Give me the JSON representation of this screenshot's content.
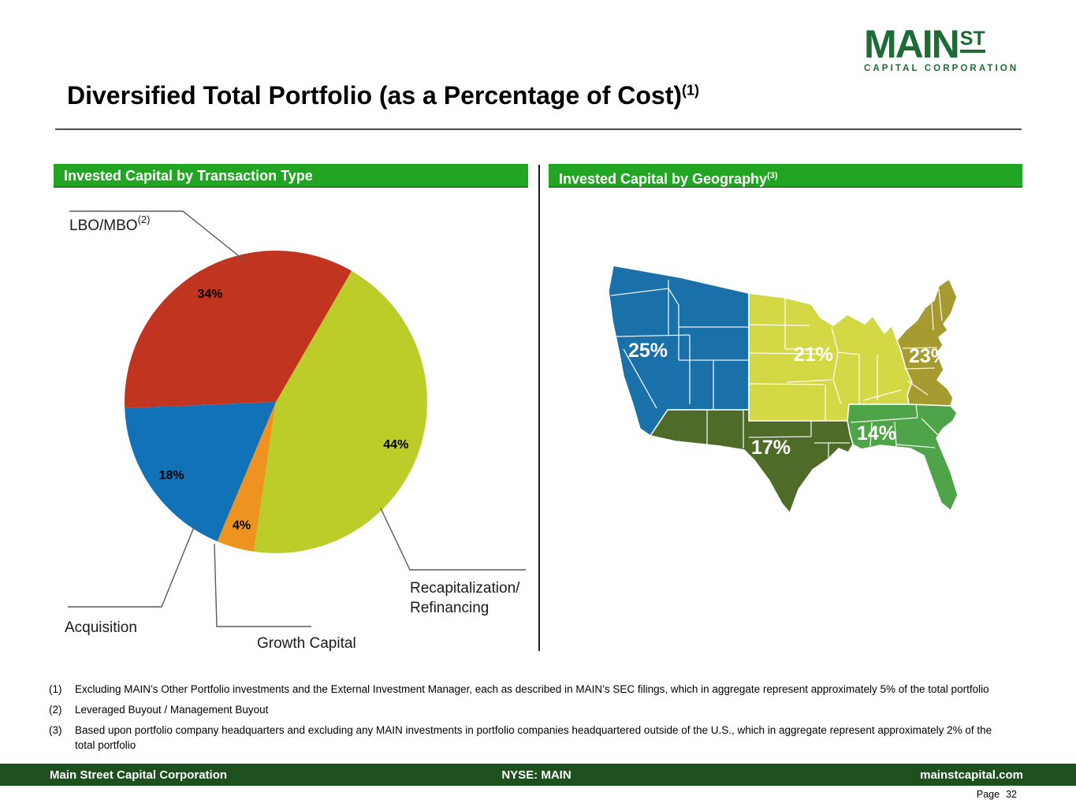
{
  "logo": {
    "main": "MAIN",
    "st": "ST",
    "subtitle": "CAPITAL CORPORATION",
    "color": "#1e6b35"
  },
  "title": {
    "text": "Diversified Total Portfolio (as a Percentage of Cost)",
    "footnote_ref": "(1)"
  },
  "panels": {
    "left": {
      "header": "Invested Capital by Transaction Type"
    },
    "right": {
      "header": "Invested Capital by Geography",
      "footnote_ref": "(3)"
    }
  },
  "chart_data": [
    {
      "type": "pie",
      "title": "Invested Capital by Transaction Type",
      "start_angle_deg": 30,
      "slices": [
        {
          "label": "Recapitalization/Refinancing",
          "label_lines": [
            "Recapitalization/",
            "Refinancing"
          ],
          "value": 44,
          "pct_label": "44%",
          "color": "#bccc28"
        },
        {
          "label": "Growth Capital",
          "value": 4,
          "pct_label": "4%",
          "color": "#ee9320"
        },
        {
          "label": "Acquisition",
          "value": 18,
          "pct_label": "18%",
          "color": "#1272b8"
        },
        {
          "label": "LBO/MBO",
          "footnote_ref": "(2)",
          "value": 34,
          "pct_label": "34%",
          "color": "#c13420"
        }
      ]
    },
    {
      "type": "map",
      "title": "Invested Capital by Geography",
      "regions": [
        {
          "name": "West",
          "value": 25,
          "label": "25%",
          "color": "#1a70a8"
        },
        {
          "name": "Midwest",
          "value": 21,
          "label": "21%",
          "color": "#d4d845"
        },
        {
          "name": "Northeast",
          "value": 23,
          "label": "23%",
          "color": "#a59b31"
        },
        {
          "name": "Southwest",
          "value": 17,
          "label": "17%",
          "color": "#4e6b27"
        },
        {
          "name": "Southeast",
          "value": 14,
          "label": "14%",
          "color": "#4fa349"
        }
      ]
    }
  ],
  "footnotes": [
    {
      "marker": "(1)",
      "text": "Excluding MAIN’s Other Portfolio investments and the External Investment Manager, each as described in MAIN’s SEC filings, which in aggregate represent approximately 5% of the total portfolio"
    },
    {
      "marker": "(2)",
      "text": "Leveraged Buyout / Management Buyout"
    },
    {
      "marker": "(3)",
      "text": "Based upon portfolio company headquarters and excluding any MAIN investments in portfolio companies headquartered outside of the U.S., which in aggregate represent approximately 2% of the total portfolio"
    }
  ],
  "footer": {
    "company": "Main Street Capital Corporation",
    "ticker": "NYSE: MAIN",
    "website": "mainstcapital.com",
    "page_label": "Page",
    "page_number": "32"
  }
}
